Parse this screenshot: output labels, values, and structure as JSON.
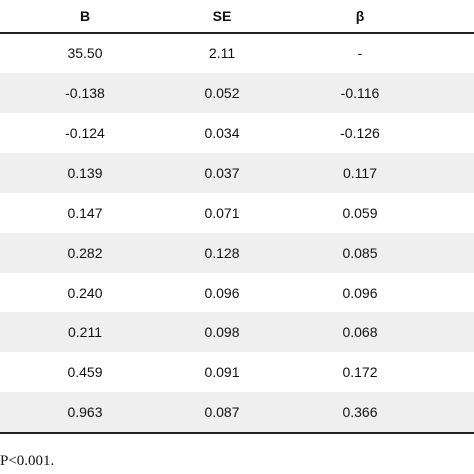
{
  "table": {
    "columns": [
      "B",
      "SE",
      "β"
    ],
    "rows": [
      [
        "35.50",
        "2.11",
        "-"
      ],
      [
        "-0.138",
        "0.052",
        "-0.116"
      ],
      [
        "-0.124",
        "0.034",
        "-0.126"
      ],
      [
        "0.139",
        "0.037",
        "0.117"
      ],
      [
        "0.147",
        "0.071",
        "0.059"
      ],
      [
        "0.282",
        "0.128",
        "0.085"
      ],
      [
        "0.240",
        "0.096",
        "0.096"
      ],
      [
        "0.211",
        "0.098",
        "0.068"
      ],
      [
        "0.459",
        "0.091",
        "0.172"
      ],
      [
        "0.963",
        "0.087",
        "0.366"
      ]
    ]
  },
  "footnote": "P<0.001."
}
